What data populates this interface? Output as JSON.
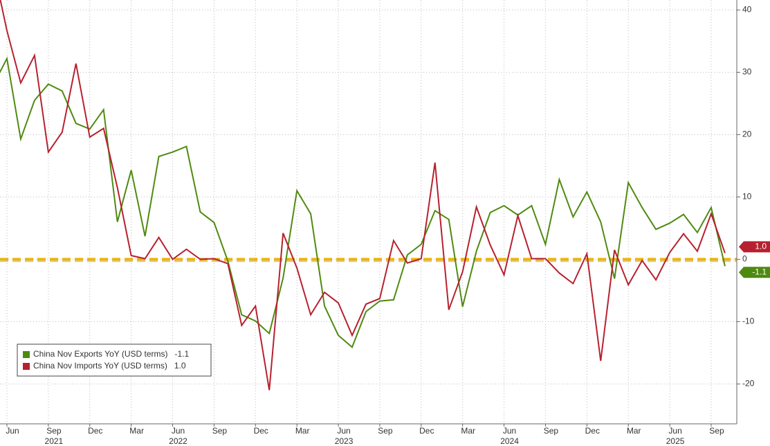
{
  "chart_data": {
    "type": "line",
    "categories": [
      null,
      "Jun",
      null,
      null,
      "Sep",
      null,
      null,
      "Dec",
      null,
      null,
      "Mar",
      null,
      null,
      "Jun",
      null,
      null,
      "Sep",
      null,
      null,
      "Dec",
      null,
      null,
      "Mar",
      null,
      null,
      "Jun",
      null,
      null,
      "Sep",
      null,
      null,
      "Dec",
      null,
      null,
      "Mar",
      null,
      null,
      "Jun",
      null,
      null,
      "Sep",
      null,
      null,
      "Dec",
      null,
      null,
      "Mar",
      null,
      null,
      "Jun",
      null,
      null,
      "Sep",
      null
    ],
    "years": [
      null,
      null,
      null,
      null,
      "2021",
      null,
      null,
      null,
      null,
      null,
      null,
      null,
      null,
      "2022",
      null,
      null,
      null,
      null,
      null,
      null,
      null,
      null,
      null,
      null,
      null,
      "2023",
      null,
      null,
      null,
      null,
      null,
      null,
      null,
      null,
      null,
      null,
      null,
      "2024",
      null,
      null,
      null,
      null,
      null,
      null,
      null,
      null,
      null,
      null,
      null,
      "2025",
      null,
      null,
      null,
      null
    ],
    "series": [
      {
        "name": "China Nov Exports YoY (USD terms)",
        "last_label": "-1.1",
        "color": "#4f8a10",
        "values": [
          27.9,
          32.2,
          19.3,
          25.5,
          28.1,
          27.0,
          21.8,
          20.9,
          24.0,
          6.0,
          14.3,
          3.7,
          16.5,
          17.2,
          18.1,
          7.6,
          5.9,
          -0.3,
          -8.9,
          -9.9,
          -11.9,
          -3.0,
          11.0,
          7.3,
          -7.5,
          -12.2,
          -14.1,
          -8.4,
          -6.7,
          -6.5,
          0.7,
          2.4,
          7.8,
          6.4,
          -7.6,
          1.3,
          7.5,
          8.6,
          7.1,
          8.6,
          2.4,
          12.8,
          6.8,
          10.8,
          6.0,
          -3.1,
          12.3,
          8.3,
          4.8,
          5.8,
          7.2,
          4.3,
          8.3,
          -1.1
        ]
      },
      {
        "name": "China Nov Imports YoY (USD terms)",
        "last_label": "1.0",
        "color": "#b7202e",
        "values": [
          47,
          36.7,
          28.3,
          32.7,
          17.2,
          20.4,
          31.4,
          19.6,
          21.0,
          11.5,
          0.6,
          0.1,
          3.5,
          0.0,
          1.6,
          0.0,
          0.1,
          -0.7,
          -10.6,
          -7.5,
          -21.0,
          4.2,
          -1.4,
          -8.9,
          -5.3,
          -7.0,
          -12.2,
          -7.2,
          -6.3,
          3.0,
          -0.6,
          0.1,
          15.5,
          -8.1,
          -2.0,
          8.4,
          2.3,
          -2.5,
          7.0,
          0.1,
          0.1,
          -2.2,
          -3.9,
          0.9,
          -16.3,
          1.5,
          -4.1,
          -0.2,
          -3.3,
          1.1,
          4.1,
          1.3,
          7.3,
          1.0
        ]
      }
    ],
    "reference_line": {
      "value": 0,
      "color": "#f0b400"
    },
    "ylim": [
      -26.4,
      41.6
    ],
    "yticks": [
      -20,
      -10,
      0,
      10,
      20,
      30,
      40
    ],
    "grid": true,
    "legend": "lower-left"
  }
}
